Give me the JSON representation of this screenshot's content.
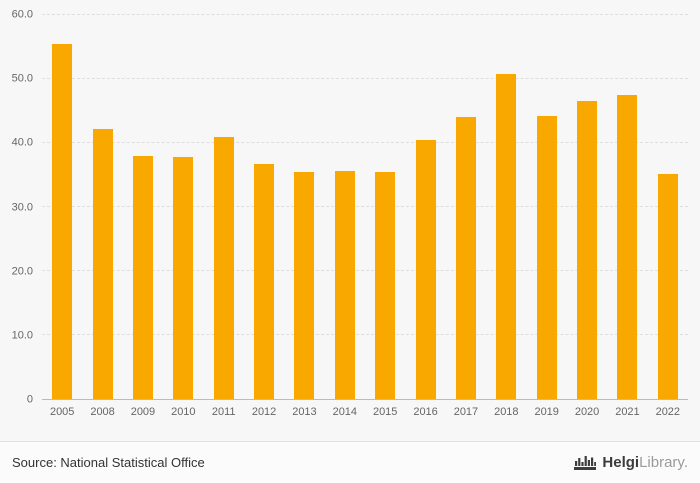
{
  "chart_data": {
    "type": "bar",
    "title": "",
    "xlabel": "",
    "ylabel": "",
    "categories": [
      "2005",
      "2008",
      "2009",
      "2010",
      "2011",
      "2012",
      "2013",
      "2014",
      "2015",
      "2016",
      "2017",
      "2018",
      "2019",
      "2020",
      "2021",
      "2022"
    ],
    "values": [
      55.5,
      42.2,
      38.0,
      37.8,
      40.9,
      36.7,
      35.5,
      35.7,
      35.5,
      40.4,
      44.0,
      50.8,
      44.2,
      46.5,
      47.5,
      35.2
    ],
    "ylim": [
      0,
      60
    ],
    "yticks": [
      {
        "label": "0",
        "value": 0
      },
      {
        "label": "10.0",
        "value": 10
      },
      {
        "label": "20.0",
        "value": 20
      },
      {
        "label": "30.0",
        "value": 30
      },
      {
        "label": "40.0",
        "value": 40
      },
      {
        "label": "50.0",
        "value": 50
      },
      {
        "label": "60.0",
        "value": 60
      }
    ],
    "grid": true,
    "legend": "none",
    "bar_color": "#F9A800",
    "background_color": "#F7F7F7",
    "gridline_color": "#DEDEDE",
    "axis_color": "#BBBBBB",
    "tick_label_color": "#666666"
  },
  "footer": {
    "source": "Source: National Statistical Office",
    "brand": {
      "icon": "castle-bars-icon",
      "icon_color": "#3D3D3D",
      "name_bold": "Helgi",
      "name_light": "Library",
      "dot": "."
    }
  }
}
